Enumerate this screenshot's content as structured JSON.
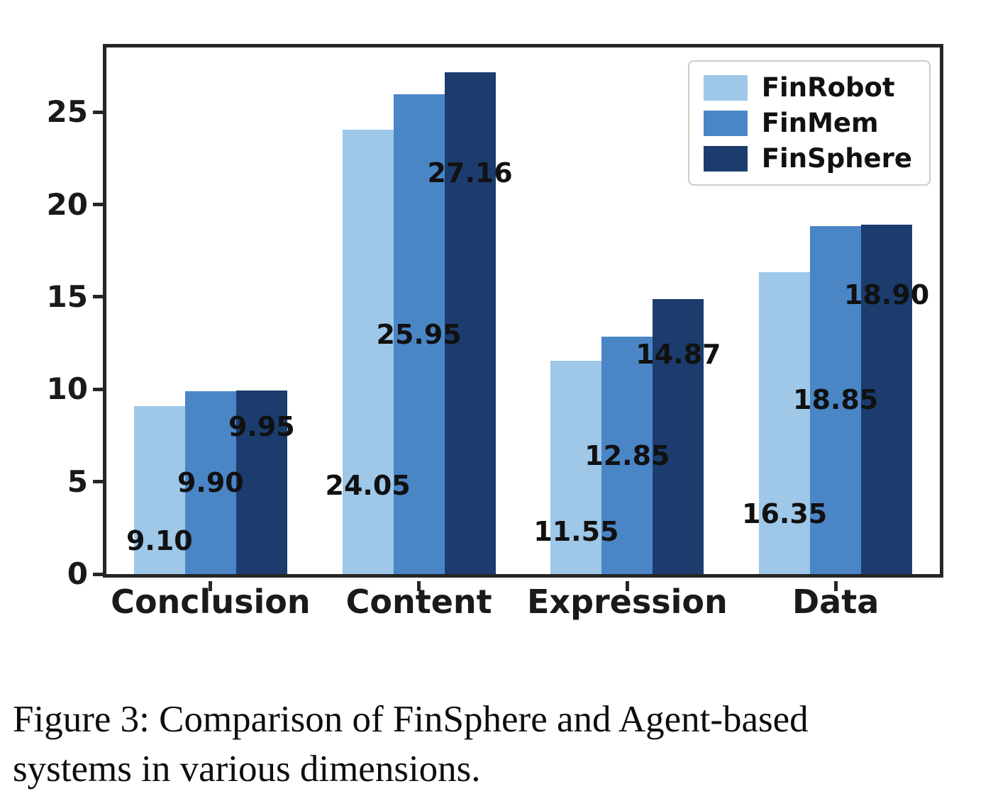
{
  "figure": {
    "caption_lines": [
      "Figure 3: Comparison of FinSphere and Agent-based",
      "systems in various dimensions."
    ]
  },
  "chart_data": {
    "type": "bar",
    "title": "",
    "xlabel": "",
    "ylabel": "",
    "categories": [
      "Conclusion",
      "Content",
      "Expression",
      "Data"
    ],
    "series": [
      {
        "name": "FinRobot",
        "color": "#9ec7e8",
        "values": [
          9.1,
          24.05,
          11.55,
          16.35
        ],
        "labels": [
          "9.10",
          "24.05",
          "11.55",
          "16.35"
        ]
      },
      {
        "name": "FinMem",
        "color": "#4a86c6",
        "values": [
          9.9,
          25.95,
          12.85,
          18.85
        ],
        "labels": [
          "9.90",
          "25.95",
          "12.85",
          "18.85"
        ]
      },
      {
        "name": "FinSphere",
        "color": "#1b3c6d",
        "values": [
          9.95,
          27.16,
          14.87,
          18.9
        ],
        "labels": [
          "9.95",
          "27.16",
          "14.87",
          "18.90"
        ]
      }
    ],
    "yticks": [
      0,
      5,
      10,
      15,
      20,
      25
    ],
    "ylim": [
      0,
      28.5
    ],
    "grid": false,
    "legend_position": "upper right",
    "axis_color": "#262626",
    "text_color": "#111111"
  }
}
